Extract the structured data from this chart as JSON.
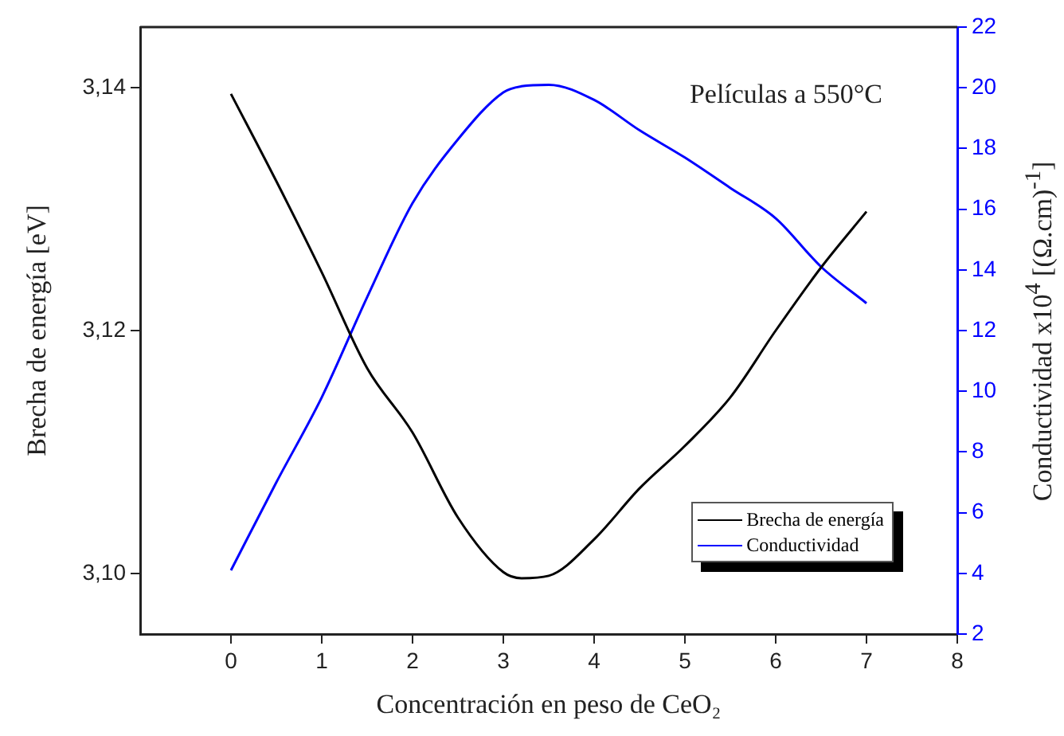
{
  "chart_data": {
    "type": "line",
    "xlabel": "Concentración en peso de CeO₂",
    "ylabel": "Brecha de energía [eV]",
    "y2label": "Conductividad x10$^{4}$ [(Ω.cm)$^{-1}$]",
    "annotations": [
      "Películas a 550°C"
    ],
    "x": [
      0,
      0.5,
      1,
      1.5,
      2,
      2.5,
      3,
      3.2,
      3.5,
      4,
      4.5,
      5,
      5.5,
      6,
      6.5,
      7
    ],
    "series": [
      {
        "name": "Brecha de energía",
        "color": "#000000",
        "values": [
          3.1395,
          3.1323,
          3.1248,
          3.1169,
          3.1116,
          3.1046,
          3.1001,
          3.0996,
          3.0998,
          3.1028,
          3.107,
          3.1105,
          3.1145,
          3.12,
          3.1252,
          3.1298
        ]
      },
      {
        "name": "Conductividad",
        "color": "#0000ff",
        "axis": "y2",
        "values": [
          4.1,
          7.0,
          9.8,
          13.1,
          16.2,
          18.3,
          19.85,
          20.05,
          20.1,
          19.6,
          18.6,
          17.7,
          16.7,
          15.7,
          14.1,
          12.9
        ]
      }
    ],
    "xlim": [
      -1,
      8
    ],
    "xticks": [
      0,
      1,
      2,
      3,
      4,
      5,
      6,
      7,
      8
    ],
    "ylim": [
      3.095,
      3.145
    ],
    "yticks": [
      {
        "value": 3.1,
        "label": "3,10"
      },
      {
        "value": 3.12,
        "label": "3,12"
      },
      {
        "value": 3.14,
        "label": "3,14"
      }
    ],
    "y2lim": [
      2,
      22
    ],
    "y2ticks": [
      2,
      4,
      6,
      8,
      10,
      12,
      14,
      16,
      18,
      20,
      22
    ],
    "legend": "bottom right",
    "marker": "none",
    "line_style": "solid"
  }
}
